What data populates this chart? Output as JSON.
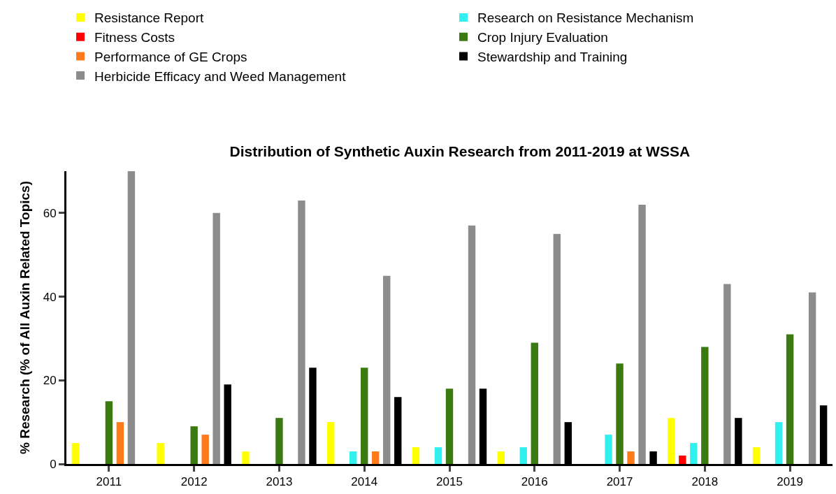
{
  "chart_data": {
    "type": "bar",
    "title": "Distribution of Synthetic Auxin Research from 2011-2019 at WSSA",
    "ylabel": "% Research (% of All Auxin Related Topics)",
    "categories": [
      "2011",
      "2012",
      "2013",
      "2014",
      "2015",
      "2016",
      "2017",
      "2018",
      "2019"
    ],
    "series": [
      {
        "name": "Resistance Report",
        "color": "#ffff00",
        "values": [
          5,
          5,
          3,
          10,
          4,
          3,
          0,
          11,
          4
        ]
      },
      {
        "name": "Fitness Costs",
        "color": "#ff0000",
        "values": [
          0,
          0,
          0,
          0,
          0,
          0,
          0,
          2,
          0
        ]
      },
      {
        "name": "Research on Resistance Mechanism",
        "color": "#33f0f0",
        "values": [
          0,
          0,
          0,
          3,
          4,
          4,
          7,
          5,
          10
        ]
      },
      {
        "name": "Crop Injury Evaluation",
        "color": "#3a7a10",
        "values": [
          15,
          9,
          11,
          23,
          18,
          29,
          24,
          28,
          31
        ]
      },
      {
        "name": "Performance of GE Crops",
        "color": "#ff7a1a",
        "values": [
          10,
          7,
          0,
          3,
          0,
          0,
          3,
          0,
          0
        ]
      },
      {
        "name": "Herbicide Efficacy and Weed Management",
        "color": "#8c8c8c",
        "values": [
          70,
          60,
          63,
          45,
          57,
          55,
          62,
          43,
          41
        ]
      },
      {
        "name": "Stewardship and Training",
        "color": "#000000",
        "values": [
          0,
          19,
          23,
          16,
          18,
          10,
          3,
          11,
          14
        ]
      }
    ],
    "ylim": [
      0,
      70
    ],
    "yticks": [
      0,
      20,
      40,
      60
    ],
    "legend": "top left"
  }
}
